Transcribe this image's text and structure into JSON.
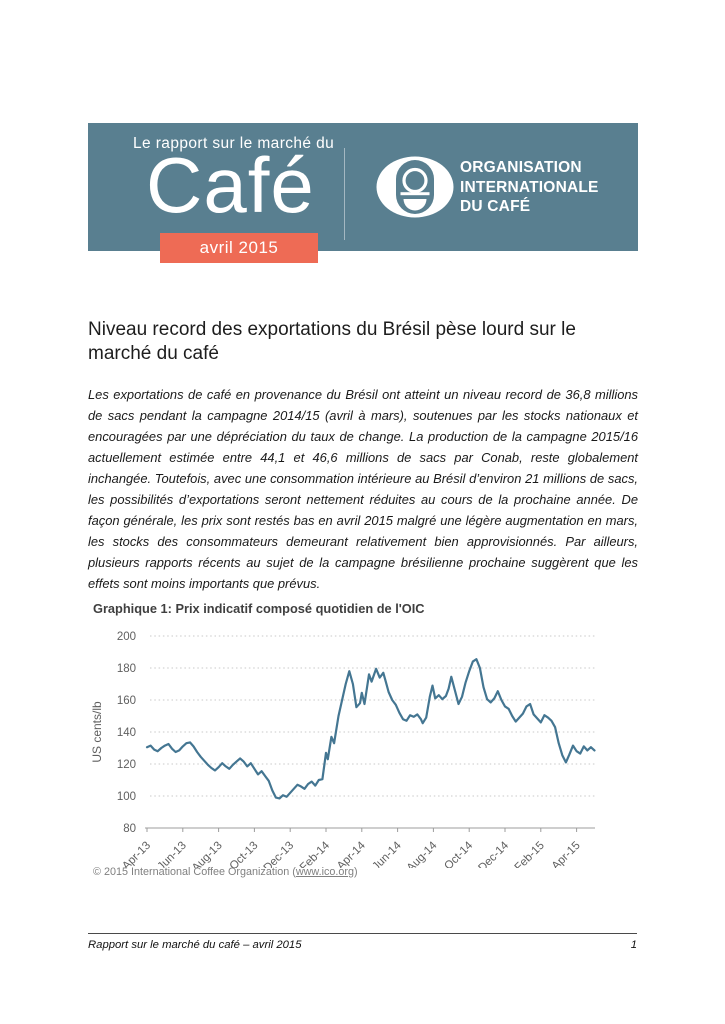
{
  "header": {
    "kicker": "Le rapport sur le marché du",
    "brand": "Café",
    "issue_badge": "avril 2015",
    "org_lines": [
      "ORGANISATION",
      "INTERNATIONALE",
      "DU CAFÉ"
    ]
  },
  "theme": {
    "banner_bg": "#597f90",
    "badge_bg": "#ee6b55",
    "banner_text": "#ffffff",
    "line_color": "#447692",
    "grid_color": "#c9c9c9",
    "axis_color": "#9c9c9c",
    "tick_label_color": "#5f5f5f"
  },
  "article": {
    "title": "Niveau record des exportations du Brésil pèse lourd sur le marché du café",
    "lead_paragraph": "Les exportations de café en provenance du Brésil ont atteint un niveau record de 36,8 millions de sacs pendant la campagne 2014/15 (avril à mars), soutenues par les stocks nationaux et encouragées par une dépréciation du taux de change. La production de la campagne 2015/16 actuellement estimée entre 44,1 et 46,6 millions de sacs par Conab, reste globalement inchangée. Toutefois, avec une consommation intérieure au Brésil d’environ 21 millions de sacs, les possibilités d’exportations seront nettement réduites au cours de la prochaine année. De façon générale, les prix sont restés bas en avril 2015 malgré une légère augmentation en mars, les stocks des consommateurs demeurant relativement bien approvisionnés. Par ailleurs, plusieurs rapports récents au sujet de la campagne brésilienne prochaine suggèrent que les effets sont moins importants que prévus."
  },
  "figure": {
    "caption": "Graphique 1: Prix indicatif composé quotidien de l'OIC",
    "source_prefix": "© 2015 International Coffee Organization (",
    "source_link": "www.ico.org",
    "source_suffix": ")"
  },
  "chart_data": {
    "type": "line",
    "title": "Graphique 1: Prix indicatif composé quotidien de l'OIC",
    "xlabel": "",
    "ylabel": "US cents/lb",
    "ylim": [
      80,
      200
    ],
    "yticks": [
      80,
      100,
      120,
      140,
      160,
      180,
      200
    ],
    "grid": "horizontal-dotted",
    "legend_position": "none",
    "x_unit": "months since Apr-2013",
    "x_tick_labels": [
      "Apr-13",
      "Jun-13",
      "Aug-13",
      "Oct-13",
      "Dec-13",
      "Feb-14",
      "Apr-14",
      "Jun-14",
      "Aug-14",
      "Oct-14",
      "Dec-14",
      "Feb-15",
      "Apr-15"
    ],
    "series": [
      {
        "name": "Prix indicatif composé quotidien de l'OIC (US cents/lb)",
        "points": [
          [
            0,
            130.5
          ],
          [
            0.2,
            131.5
          ],
          [
            0.4,
            129
          ],
          [
            0.6,
            128
          ],
          [
            0.8,
            130
          ],
          [
            1,
            131.5
          ],
          [
            1.2,
            132.5
          ],
          [
            1.4,
            129.5
          ],
          [
            1.6,
            127.5
          ],
          [
            1.8,
            128.5
          ],
          [
            2,
            131
          ],
          [
            2.2,
            133
          ],
          [
            2.4,
            133.5
          ],
          [
            2.6,
            131
          ],
          [
            2.8,
            127.5
          ],
          [
            3,
            124.5
          ],
          [
            3.2,
            122
          ],
          [
            3.4,
            119.5
          ],
          [
            3.6,
            117.5
          ],
          [
            3.8,
            116
          ],
          [
            4,
            118
          ],
          [
            4.2,
            120.5
          ],
          [
            4.4,
            118.5
          ],
          [
            4.6,
            117
          ],
          [
            4.8,
            119.5
          ],
          [
            5,
            121.5
          ],
          [
            5.2,
            123.5
          ],
          [
            5.4,
            121.5
          ],
          [
            5.6,
            118.5
          ],
          [
            5.8,
            120.5
          ],
          [
            6,
            117
          ],
          [
            6.2,
            113.5
          ],
          [
            6.4,
            115.5
          ],
          [
            6.6,
            112.5
          ],
          [
            6.8,
            109.5
          ],
          [
            7,
            103.5
          ],
          [
            7.2,
            99
          ],
          [
            7.4,
            98.5
          ],
          [
            7.6,
            100.5
          ],
          [
            7.8,
            99.5
          ],
          [
            8,
            102
          ],
          [
            8.2,
            104.5
          ],
          [
            8.4,
            107
          ],
          [
            8.6,
            106
          ],
          [
            8.8,
            104.5
          ],
          [
            9,
            107.5
          ],
          [
            9.2,
            109
          ],
          [
            9.4,
            106.5
          ],
          [
            9.6,
            110
          ],
          [
            9.8,
            110.5
          ],
          [
            10,
            127
          ],
          [
            10.1,
            123
          ],
          [
            10.3,
            137
          ],
          [
            10.45,
            133
          ],
          [
            10.7,
            150
          ],
          [
            10.9,
            160
          ],
          [
            11.1,
            170
          ],
          [
            11.3,
            178
          ],
          [
            11.5,
            170
          ],
          [
            11.7,
            155.5
          ],
          [
            11.9,
            158
          ],
          [
            12,
            164.5
          ],
          [
            12.15,
            157.5
          ],
          [
            12.4,
            176
          ],
          [
            12.55,
            171.5
          ],
          [
            12.8,
            179.5
          ],
          [
            13,
            174
          ],
          [
            13.2,
            177
          ],
          [
            13.35,
            171
          ],
          [
            13.5,
            165
          ],
          [
            13.7,
            160
          ],
          [
            13.9,
            157
          ],
          [
            14.1,
            152
          ],
          [
            14.3,
            148
          ],
          [
            14.5,
            147
          ],
          [
            14.7,
            150.5
          ],
          [
            14.9,
            149.5
          ],
          [
            15.1,
            151
          ],
          [
            15.3,
            148
          ],
          [
            15.4,
            145.5
          ],
          [
            15.6,
            149
          ],
          [
            15.8,
            162
          ],
          [
            15.95,
            169
          ],
          [
            16.1,
            161
          ],
          [
            16.3,
            163
          ],
          [
            16.5,
            160.5
          ],
          [
            16.7,
            162.5
          ],
          [
            16.85,
            167
          ],
          [
            17,
            174.5
          ],
          [
            17.2,
            166
          ],
          [
            17.4,
            157.5
          ],
          [
            17.6,
            162
          ],
          [
            17.8,
            171
          ],
          [
            18,
            178
          ],
          [
            18.2,
            184
          ],
          [
            18.4,
            185.5
          ],
          [
            18.6,
            180
          ],
          [
            18.8,
            168
          ],
          [
            19,
            160.5
          ],
          [
            19.2,
            158.5
          ],
          [
            19.4,
            161
          ],
          [
            19.6,
            165.5
          ],
          [
            19.8,
            160
          ],
          [
            20,
            156
          ],
          [
            20.2,
            154.5
          ],
          [
            20.4,
            150
          ],
          [
            20.6,
            146.5
          ],
          [
            20.8,
            149
          ],
          [
            21,
            151.5
          ],
          [
            21.2,
            156
          ],
          [
            21.4,
            157.5
          ],
          [
            21.6,
            151
          ],
          [
            21.8,
            148.5
          ],
          [
            22,
            146
          ],
          [
            22.2,
            150.5
          ],
          [
            22.4,
            149
          ],
          [
            22.6,
            147
          ],
          [
            22.8,
            143
          ],
          [
            23,
            133
          ],
          [
            23.2,
            125.5
          ],
          [
            23.4,
            121
          ],
          [
            23.6,
            126
          ],
          [
            23.8,
            131.5
          ],
          [
            24,
            128
          ],
          [
            24.2,
            126.5
          ],
          [
            24.4,
            131
          ],
          [
            24.6,
            128.5
          ],
          [
            24.8,
            130.5
          ],
          [
            25,
            128.5
          ]
        ]
      }
    ]
  },
  "footer": {
    "left_text": "Rapport sur le marché du café – avril 2015",
    "page_number": "1"
  }
}
